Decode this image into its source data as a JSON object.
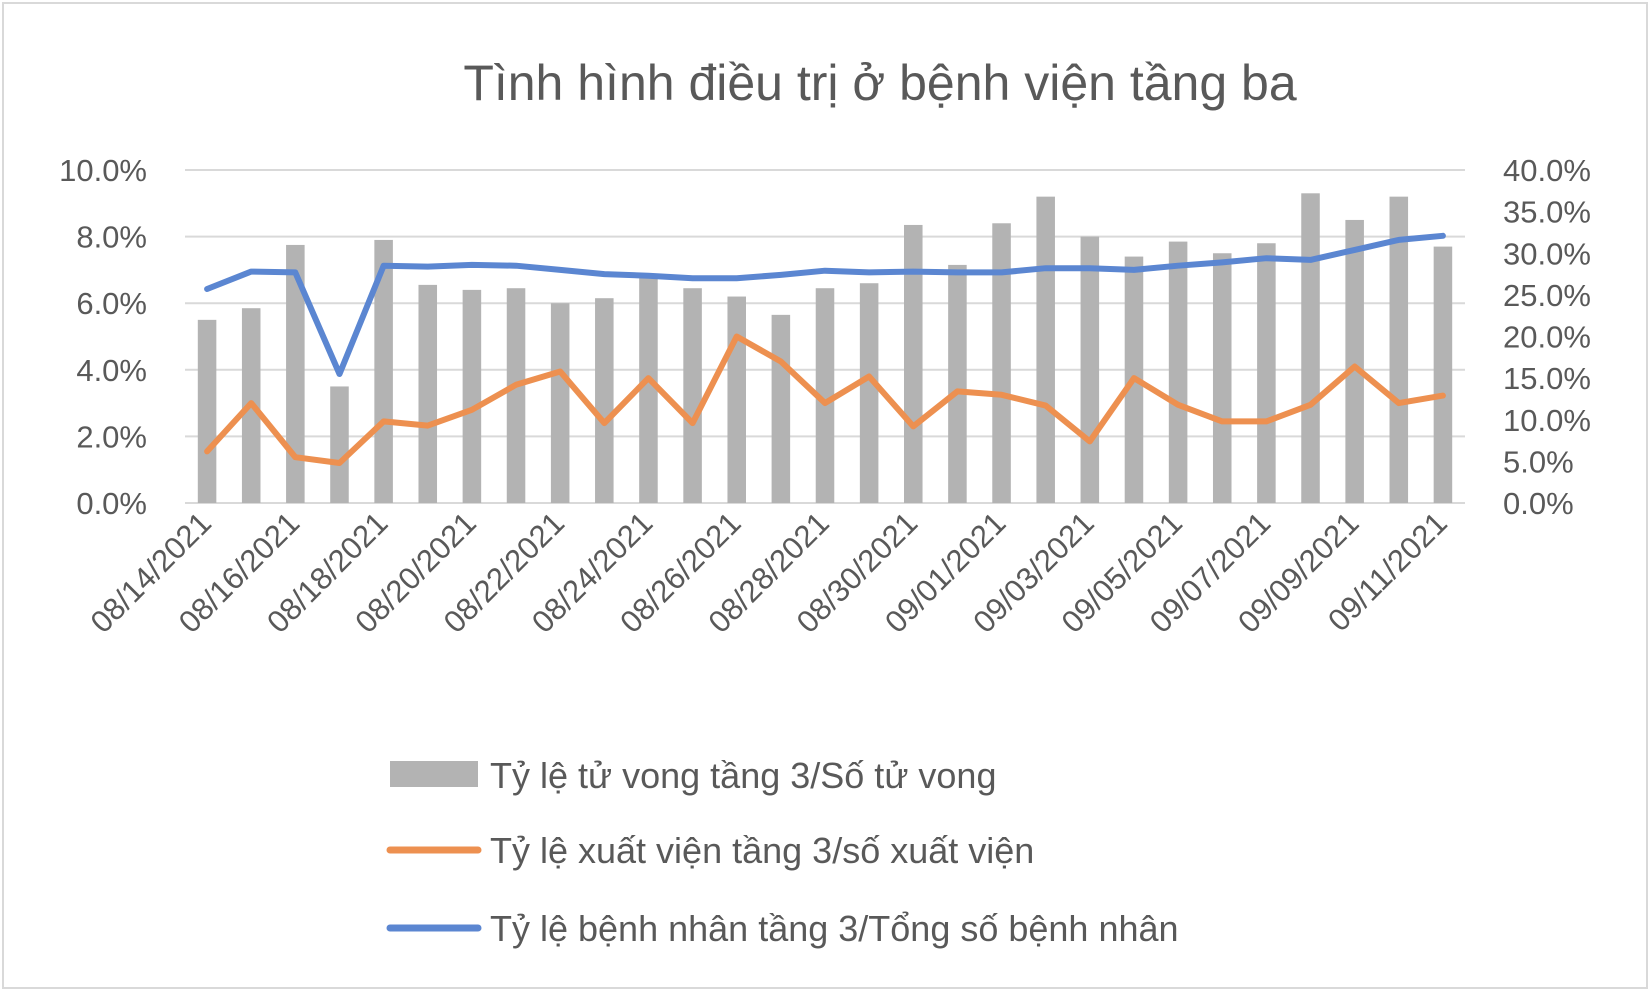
{
  "chart_data": {
    "type": "bar+line",
    "title": "Tình hình điều trị ở bệnh viện tầng ba",
    "dates": [
      "08/14/2021",
      "08/15/2021",
      "08/16/2021",
      "08/17/2021",
      "08/18/2021",
      "08/19/2021",
      "08/20/2021",
      "08/21/2021",
      "08/22/2021",
      "08/23/2021",
      "08/24/2021",
      "08/25/2021",
      "08/26/2021",
      "08/27/2021",
      "08/28/2021",
      "08/29/2021",
      "08/30/2021",
      "08/31/2021",
      "09/01/2021",
      "09/02/2021",
      "09/03/2021",
      "09/04/2021",
      "09/05/2021",
      "09/06/2021",
      "09/07/2021",
      "09/08/2021",
      "09/09/2021",
      "09/10/2021",
      "09/11/2021"
    ],
    "x_tick_labels": [
      "08/14/2021",
      "08/16/2021",
      "08/18/2021",
      "08/20/2021",
      "08/22/2021",
      "08/24/2021",
      "08/26/2021",
      "08/28/2021",
      "08/30/2021",
      "09/01/2021",
      "09/03/2021",
      "09/05/2021",
      "09/07/2021",
      "09/09/2021",
      "09/11/2021"
    ],
    "y_left": {
      "min": 0,
      "max": 10,
      "ticks": [
        "0.0%",
        "2.0%",
        "4.0%",
        "6.0%",
        "8.0%",
        "10.0%"
      ]
    },
    "y_right": {
      "min": 0,
      "max": 40,
      "ticks": [
        "0.0%",
        "5.0%",
        "10.0%",
        "15.0%",
        "20.0%",
        "25.0%",
        "30.0%",
        "35.0%",
        "40.0%"
      ]
    },
    "gridlines": true,
    "legend_position": "bottom",
    "series": [
      {
        "name": "Tỷ lệ tử vong tầng 3/Số tử vong",
        "kind": "bar",
        "axis": "left",
        "color": "#b3b3b3",
        "values": [
          5.5,
          5.85,
          7.75,
          3.5,
          7.9,
          6.55,
          6.4,
          6.45,
          6.0,
          6.15,
          6.85,
          6.45,
          6.2,
          5.65,
          6.45,
          6.6,
          8.35,
          7.15,
          8.4,
          9.2,
          8.0,
          7.4,
          7.85,
          7.5,
          7.8,
          9.3,
          8.5,
          9.2,
          7.7
        ]
      },
      {
        "name": "Tỷ lệ xuất viện tầng 3/số xuất viện",
        "kind": "line",
        "axis": "right",
        "color": "#ed9050",
        "values": [
          6.2,
          12.0,
          5.5,
          4.8,
          9.8,
          9.3,
          11.2,
          14.2,
          15.8,
          9.6,
          15.0,
          9.6,
          20.0,
          17.0,
          12.0,
          15.2,
          9.2,
          13.4,
          13.0,
          11.7,
          7.4,
          15.0,
          11.8,
          9.8,
          9.8,
          11.8,
          16.4,
          12.0,
          12.9
        ]
      },
      {
        "name": "Tỷ lệ bệnh nhân tầng 3/Tổng số bệnh nhân",
        "kind": "line",
        "axis": "right",
        "color": "#5b86d1",
        "values": [
          25.7,
          27.8,
          27.7,
          15.5,
          28.5,
          28.4,
          28.6,
          28.5,
          28.0,
          27.5,
          27.3,
          27.0,
          27.0,
          27.4,
          27.9,
          27.7,
          27.8,
          27.7,
          27.7,
          28.2,
          28.2,
          28.0,
          28.5,
          28.9,
          29.4,
          29.2,
          30.4,
          31.6,
          32.1
        ]
      }
    ]
  }
}
